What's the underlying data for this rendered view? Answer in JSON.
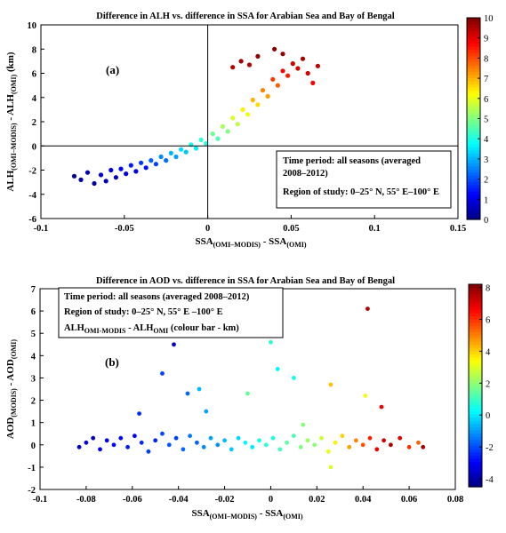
{
  "chart_data": [
    {
      "type": "scatter",
      "panel_label": "(a)",
      "title": "Difference in ALH vs. difference in SSA for Arabian Sea and Bay of Bengal",
      "xlabel": {
        "base": "SSA",
        "sub": "(OMI–MODIS)",
        "mid": " - SSA",
        "sub2": "(OMI)"
      },
      "ylabel": {
        "base": "ALH",
        "sub": "(OMI–MODIS)",
        "mid": " - ALH",
        "sub2": "(OMI)",
        "unit": " (km)"
      },
      "xlim": [
        -0.1,
        0.15
      ],
      "ylim": [
        -6,
        10
      ],
      "xticks": [
        -0.1,
        -0.05,
        0,
        0.05,
        0.1,
        0.15
      ],
      "xtick_labels": [
        "-0.1",
        "-0.05",
        "0",
        "0.05",
        "0.1",
        "0.15"
      ],
      "yticks": [
        -6,
        -4,
        -2,
        0,
        2,
        4,
        6,
        8,
        10
      ],
      "ytick_labels": [
        "-6",
        "-4",
        "-2",
        "0",
        "2",
        "4",
        "6",
        "8",
        "10"
      ],
      "reference_lines": {
        "x": 0,
        "y": 0
      },
      "colorbar": {
        "min": 0,
        "max": 10,
        "ticks": [
          0,
          1,
          2,
          3,
          4,
          5,
          6,
          7,
          8,
          9,
          10
        ],
        "tick_labels": [
          "0",
          "1",
          "2",
          "3",
          "4",
          "5",
          "6",
          "7",
          "8",
          "9",
          "10"
        ],
        "colormap": "jet"
      },
      "annotation": [
        "Time period:  all seasons (averaged",
        "2008–2012)",
        "Region of study:  0–25° N,  55° E–100° E"
      ],
      "points": [
        [
          -0.08,
          -2.5,
          0.3
        ],
        [
          -0.076,
          -2.8,
          0.4
        ],
        [
          -0.072,
          -2.2,
          0.6
        ],
        [
          -0.068,
          -3.1,
          0.3
        ],
        [
          -0.064,
          -2.4,
          0.8
        ],
        [
          -0.061,
          -2.9,
          0.5
        ],
        [
          -0.058,
          -2.0,
          1.0
        ],
        [
          -0.055,
          -2.6,
          0.7
        ],
        [
          -0.052,
          -1.9,
          1.2
        ],
        [
          -0.049,
          -2.3,
          0.9
        ],
        [
          -0.046,
          -1.6,
          1.5
        ],
        [
          -0.043,
          -2.1,
          1.1
        ],
        [
          -0.04,
          -1.4,
          1.8
        ],
        [
          -0.037,
          -1.8,
          1.4
        ],
        [
          -0.034,
          -1.2,
          2.2
        ],
        [
          -0.031,
          -1.5,
          1.9
        ],
        [
          -0.028,
          -0.9,
          2.6
        ],
        [
          -0.025,
          -1.2,
          2.3
        ],
        [
          -0.022,
          -0.6,
          3.0
        ],
        [
          -0.019,
          -0.9,
          2.8
        ],
        [
          -0.016,
          -0.3,
          3.4
        ],
        [
          -0.013,
          -0.5,
          3.2
        ],
        [
          -0.01,
          0.1,
          3.9
        ],
        [
          -0.007,
          -0.2,
          3.6
        ],
        [
          -0.004,
          0.5,
          4.2
        ],
        [
          -0.001,
          0.2,
          4.0
        ],
        [
          0.003,
          1.0,
          4.8
        ],
        [
          0.006,
          0.6,
          4.5
        ],
        [
          0.009,
          1.6,
          5.4
        ],
        [
          0.012,
          1.2,
          5.0
        ],
        [
          0.015,
          2.3,
          5.9
        ],
        [
          0.018,
          1.8,
          5.6
        ],
        [
          0.021,
          3.0,
          6.4
        ],
        [
          0.024,
          2.6,
          6.1
        ],
        [
          0.027,
          3.8,
          7.0
        ],
        [
          0.03,
          3.4,
          6.6
        ],
        [
          0.033,
          4.6,
          7.5
        ],
        [
          0.036,
          4.1,
          7.2
        ],
        [
          0.039,
          5.5,
          8.2
        ],
        [
          0.042,
          5.0,
          7.8
        ],
        [
          0.045,
          6.2,
          8.8
        ],
        [
          0.048,
          5.8,
          8.5
        ],
        [
          0.051,
          6.8,
          9.3
        ],
        [
          0.054,
          6.4,
          9.1
        ],
        [
          0.057,
          7.2,
          9.6
        ],
        [
          0.06,
          6.0,
          9.2
        ],
        [
          0.063,
          5.2,
          8.8
        ],
        [
          0.066,
          6.6,
          9.4
        ],
        [
          0.015,
          6.5,
          9.5
        ],
        [
          0.02,
          7.0,
          9.7
        ],
        [
          0.025,
          6.7,
          9.5
        ],
        [
          0.03,
          7.4,
          9.8
        ],
        [
          0.04,
          8.0,
          9.9
        ],
        [
          0.045,
          7.6,
          9.8
        ]
      ]
    },
    {
      "type": "scatter",
      "panel_label": "(b)",
      "title": "Difference in AOD vs. difference in SSA for Arabian Sea and Bay of Bengal",
      "xlabel": {
        "base": "SSA",
        "sub": "(OMI–MODIS)",
        "mid": " - SSA",
        "sub2": "(OMI)"
      },
      "ylabel": {
        "base": "AOD",
        "sub": "(MODIS)",
        "mid": " - AOD",
        "sub2": "(OMI)",
        "unit": ""
      },
      "xlim": [
        -0.1,
        0.08
      ],
      "ylim": [
        -2,
        7
      ],
      "xticks": [
        -0.1,
        -0.08,
        -0.06,
        -0.04,
        -0.02,
        0,
        0.02,
        0.04,
        0.06,
        0.08
      ],
      "xtick_labels": [
        "-0.1",
        "-0.08",
        "-0.06",
        "-0.04",
        "-0.02",
        "0",
        "0.02",
        "0.04",
        "0.06",
        "0.08"
      ],
      "yticks": [
        -2,
        -1,
        0,
        1,
        2,
        3,
        4,
        5,
        6,
        7
      ],
      "ytick_labels": [
        "-2",
        "-1",
        "0",
        "1",
        "2",
        "3",
        "4",
        "5",
        "6",
        "7"
      ],
      "colorbar": {
        "min": -4.5,
        "max": 8.2,
        "ticks": [
          -4,
          -2,
          0,
          2,
          4,
          6,
          8
        ],
        "tick_labels": [
          "-4",
          "-2",
          "0",
          "2",
          "4",
          "6",
          "8"
        ],
        "colormap": "jet"
      },
      "annotation": [
        "Time period:  all seasons (averaged  2008–2012)",
        "Region of study:  0–25° N,  55° E –100° E",
        "ALH_OMI-MODIS - ALH_OMI (colour bar - km)"
      ],
      "points": [
        [
          -0.083,
          -0.1,
          -3.5
        ],
        [
          -0.08,
          0.1,
          -3.2
        ],
        [
          -0.077,
          0.3,
          -3.8
        ],
        [
          -0.074,
          -0.2,
          -3.0
        ],
        [
          -0.071,
          0.2,
          -3.4
        ],
        [
          -0.068,
          0.0,
          -2.8
        ],
        [
          -0.065,
          0.3,
          -3.1
        ],
        [
          -0.062,
          -0.1,
          -2.6
        ],
        [
          -0.059,
          0.4,
          -2.9
        ],
        [
          -0.056,
          0.1,
          -2.4
        ],
        [
          -0.053,
          -0.3,
          -2.2
        ],
        [
          -0.05,
          0.2,
          -2.5
        ],
        [
          -0.047,
          0.5,
          -2.0
        ],
        [
          -0.044,
          0.0,
          -1.8
        ],
        [
          -0.041,
          0.3,
          -2.1
        ],
        [
          -0.038,
          -0.2,
          -1.6
        ],
        [
          -0.035,
          0.4,
          -1.4
        ],
        [
          -0.032,
          0.1,
          -1.7
        ],
        [
          -0.029,
          -0.1,
          -1.2
        ],
        [
          -0.026,
          0.3,
          -0.9
        ],
        [
          -0.023,
          0.0,
          -1.1
        ],
        [
          -0.02,
          0.2,
          -0.6
        ],
        [
          -0.017,
          -0.2,
          -0.4
        ],
        [
          -0.014,
          0.3,
          -0.2
        ],
        [
          -0.011,
          0.1,
          0.2
        ],
        [
          -0.008,
          -0.1,
          0.0
        ],
        [
          -0.005,
          0.2,
          0.5
        ],
        [
          -0.002,
          0.0,
          0.8
        ],
        [
          0.001,
          0.3,
          0.6
        ],
        [
          0.004,
          -0.2,
          1.1
        ],
        [
          0.007,
          0.1,
          1.4
        ],
        [
          0.01,
          0.4,
          1.2
        ],
        [
          0.013,
          -0.1,
          1.8
        ],
        [
          0.016,
          0.2,
          2.2
        ],
        [
          0.019,
          0.0,
          2.0
        ],
        [
          0.022,
          0.3,
          2.8
        ],
        [
          0.025,
          -0.3,
          3.2
        ],
        [
          0.028,
          0.1,
          3.6
        ],
        [
          0.031,
          0.4,
          4.0
        ],
        [
          0.034,
          -0.1,
          4.6
        ],
        [
          0.037,
          0.2,
          5.0
        ],
        [
          0.04,
          0.0,
          5.6
        ],
        [
          0.043,
          0.3,
          6.2
        ],
        [
          0.046,
          -0.2,
          6.8
        ],
        [
          0.049,
          0.2,
          7.2
        ],
        [
          0.052,
          0.0,
          7.6
        ],
        [
          0.056,
          0.3,
          7.0
        ],
        [
          0.06,
          -0.1,
          6.0
        ],
        [
          0.064,
          0.1,
          5.4
        ],
        [
          0.066,
          -0.1,
          7.8
        ],
        [
          -0.057,
          1.4,
          -2.4
        ],
        [
          -0.047,
          3.2,
          -2.1
        ],
        [
          -0.042,
          4.5,
          -3.6
        ],
        [
          -0.036,
          2.3,
          -1.6
        ],
        [
          -0.031,
          2.5,
          -0.6
        ],
        [
          -0.028,
          1.5,
          -0.9
        ],
        [
          -0.01,
          2.3,
          1.5
        ],
        [
          0.0,
          4.6,
          0.8
        ],
        [
          0.003,
          3.4,
          0.2
        ],
        [
          0.01,
          3.0,
          0.5
        ],
        [
          0.026,
          2.7,
          4.2
        ],
        [
          0.041,
          2.2,
          3.2
        ],
        [
          0.048,
          1.7,
          6.8
        ],
        [
          0.042,
          6.1,
          7.6
        ],
        [
          0.026,
          -1.0,
          3.0
        ],
        [
          0.014,
          0.9,
          1.9
        ]
      ]
    }
  ]
}
